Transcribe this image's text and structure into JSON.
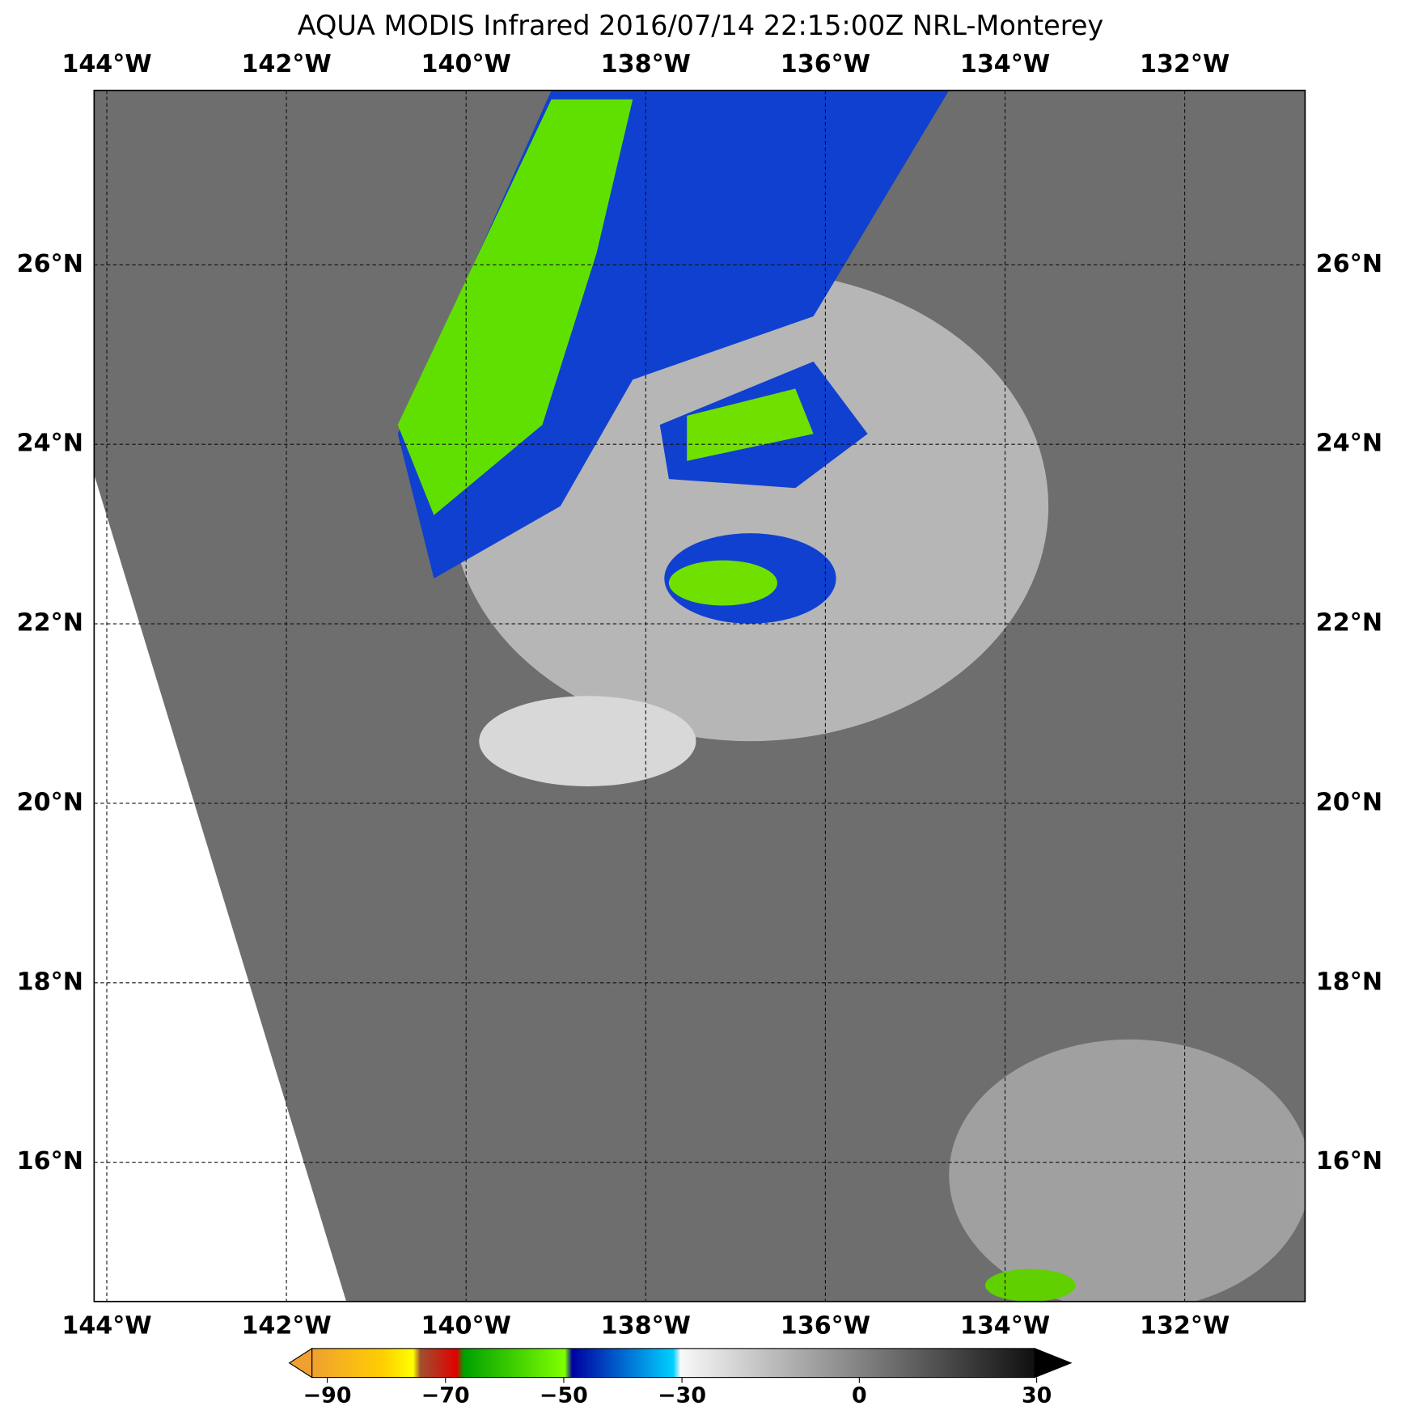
{
  "title": "AQUA MODIS Infrared 2016/07/14 22:15:00Z NRL-Monterey",
  "lon_labels": [
    "144°W",
    "142°W",
    "140°W",
    "138°W",
    "136°W",
    "134°W",
    "132°W"
  ],
  "lat_labels": [
    "26°N",
    "24°N",
    "22°N",
    "20°N",
    "18°N",
    "16°N"
  ],
  "colorbar": {
    "lim": [
      -90,
      30
    ],
    "ticks": [
      {
        "value": -90,
        "label": "−90"
      },
      {
        "value": -70,
        "label": "−70"
      },
      {
        "value": -50,
        "label": "−50"
      },
      {
        "value": -30,
        "label": "−30"
      },
      0,
      30
    ]
  }
}
